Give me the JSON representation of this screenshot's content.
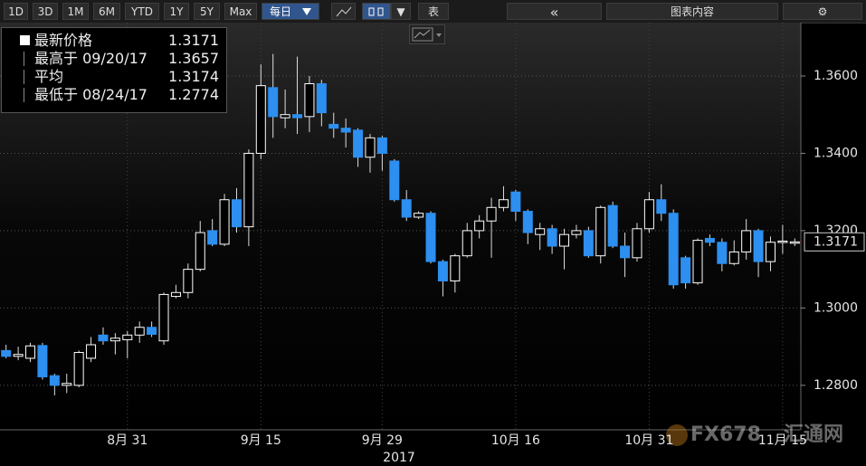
{
  "toolbar": {
    "buttons": [
      "1D",
      "3D",
      "1M",
      "6M",
      "YTD",
      "1Y",
      "5Y",
      "Max",
      "每日"
    ],
    "table": "表",
    "panel": "图表内容"
  },
  "chart_data": {
    "type": "candlestick",
    "xlabel": "2017",
    "categories": [
      null,
      null,
      null,
      null,
      null,
      null,
      null,
      null,
      null,
      null,
      "8月 31",
      null,
      null,
      null,
      null,
      null,
      null,
      null,
      null,
      null,
      null,
      "9月 15",
      null,
      null,
      null,
      null,
      null,
      null,
      null,
      null,
      null,
      "9月 29",
      null,
      null,
      null,
      null,
      null,
      null,
      null,
      null,
      null,
      null,
      "10月 16",
      null,
      null,
      null,
      null,
      null,
      null,
      null,
      null,
      null,
      null,
      "10月 31",
      null,
      null,
      null,
      null,
      null,
      null,
      null,
      null,
      null,
      null,
      "11月 15",
      null
    ],
    "series": [
      {
        "up_color": "#ffffff",
        "down_color": "#2d8ff0",
        "open": [
          1.289,
          1.2875,
          1.287,
          1.2903,
          1.2825,
          1.28,
          1.28,
          1.287,
          1.293,
          1.2915,
          1.2918,
          1.293,
          1.295,
          1.2915,
          1.303,
          1.304,
          1.31,
          1.32,
          1.3165,
          1.328,
          1.321,
          1.34,
          1.357,
          1.3492,
          1.35,
          1.3495,
          1.358,
          1.3475,
          1.3465,
          1.346,
          1.339,
          1.344,
          1.338,
          1.328,
          1.3235,
          1.3245,
          1.312,
          1.307,
          1.3135,
          1.32,
          1.3225,
          1.326,
          1.33,
          1.325,
          1.319,
          1.3205,
          1.316,
          1.319,
          1.32,
          1.3135,
          1.3265,
          1.316,
          1.313,
          1.3205,
          1.328,
          1.3245,
          1.313,
          1.3065,
          1.318,
          1.317,
          1.3115,
          1.3145,
          1.32,
          1.312,
          1.317,
          1.317
        ],
        "high": [
          1.2905,
          1.29,
          1.291,
          1.291,
          1.283,
          1.283,
          1.289,
          1.2925,
          1.295,
          1.2935,
          1.294,
          1.2965,
          1.2965,
          1.304,
          1.306,
          1.3115,
          1.3225,
          1.323,
          1.3295,
          1.331,
          1.341,
          1.363,
          1.3657,
          1.3565,
          1.365,
          1.36,
          1.359,
          1.3505,
          1.349,
          1.3465,
          1.345,
          1.3445,
          1.3385,
          1.3305,
          1.325,
          1.325,
          1.3125,
          1.314,
          1.322,
          1.324,
          1.3285,
          1.3315,
          1.3305,
          1.3255,
          1.322,
          1.3215,
          1.3205,
          1.3215,
          1.321,
          1.3265,
          1.3275,
          1.3195,
          1.322,
          1.33,
          1.332,
          1.3255,
          1.3135,
          1.318,
          1.319,
          1.318,
          1.3175,
          1.323,
          1.3205,
          1.3185,
          1.3215,
          1.318
        ],
        "low": [
          1.287,
          1.2865,
          1.286,
          1.2815,
          1.2774,
          1.278,
          1.2795,
          1.286,
          1.2905,
          1.288,
          1.287,
          1.291,
          1.2925,
          1.2905,
          1.3025,
          1.3025,
          1.3095,
          1.316,
          1.316,
          1.3195,
          1.316,
          1.3385,
          1.344,
          1.3465,
          1.345,
          1.3455,
          1.347,
          1.344,
          1.3415,
          1.3365,
          1.335,
          1.3355,
          1.3275,
          1.3225,
          1.323,
          1.3115,
          1.303,
          1.304,
          1.313,
          1.318,
          1.313,
          1.325,
          1.3225,
          1.3165,
          1.315,
          1.314,
          1.31,
          1.318,
          1.313,
          1.3115,
          1.3155,
          1.308,
          1.312,
          1.3195,
          1.3225,
          1.305,
          1.305,
          1.306,
          1.316,
          1.3095,
          1.311,
          1.3125,
          1.308,
          1.3095,
          1.314,
          1.316
        ],
        "close": [
          1.2875,
          1.288,
          1.2902,
          1.2822,
          1.28,
          1.2805,
          1.2885,
          1.2905,
          1.2915,
          1.2922,
          1.293,
          1.295,
          1.2932,
          1.3035,
          1.304,
          1.31,
          1.3195,
          1.3165,
          1.328,
          1.321,
          1.34,
          1.3575,
          1.3495,
          1.35,
          1.3492,
          1.358,
          1.3505,
          1.3465,
          1.3455,
          1.339,
          1.344,
          1.34,
          1.328,
          1.3235,
          1.3245,
          1.312,
          1.307,
          1.3135,
          1.32,
          1.3225,
          1.326,
          1.328,
          1.325,
          1.3195,
          1.3205,
          1.316,
          1.319,
          1.32,
          1.3135,
          1.326,
          1.316,
          1.313,
          1.3205,
          1.328,
          1.3245,
          1.306,
          1.3065,
          1.3175,
          1.317,
          1.3115,
          1.3145,
          1.32,
          1.312,
          1.317,
          1.3173,
          1.3171
        ]
      }
    ],
    "ylim": [
      1.2685,
      1.3738
    ],
    "yticks": [
      {
        "value": 1.28,
        "label": "1.2800"
      },
      {
        "value": 1.3,
        "label": "1.3000"
      },
      {
        "value": 1.32,
        "label": "1.3200"
      },
      {
        "value": 1.34,
        "label": "1.3400"
      },
      {
        "value": 1.36,
        "label": "1.3600"
      }
    ],
    "grid": true,
    "last_price": 1.3171,
    "last_price_color": "#e0401a",
    "legend": [
      {
        "label": "最新价格",
        "value": "1.3171"
      },
      {
        "label": "最高于 09/20/17",
        "value": "1.3657"
      },
      {
        "label": "平均",
        "value": "1.3174"
      },
      {
        "label": "最低于 08/24/17",
        "value": "1.2774"
      }
    ],
    "watermark": [
      "FX678",
      "汇通网"
    ]
  }
}
